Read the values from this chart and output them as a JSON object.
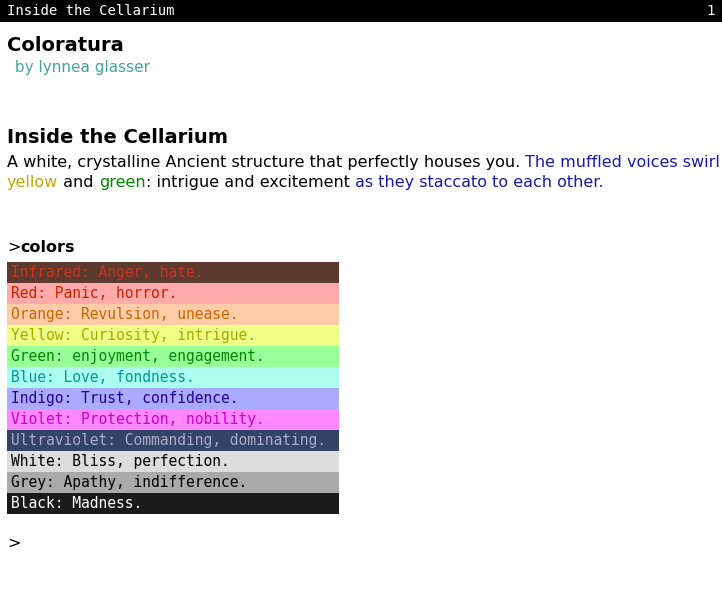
{
  "title_bar_text": "Inside the Cellarium",
  "title_bar_number": "1",
  "title_bar_bg": "#000000",
  "title_bar_fg": "#ffffff",
  "main_bg": "#ffffff",
  "game_title": "Coloratura",
  "game_author": " by lynnea glasser",
  "game_author_color": "#4aa0a0",
  "section_title": "Inside the Cellarium",
  "paragraph_color1": "#000000",
  "paragraph_color_yellow": "#bbaa00",
  "paragraph_color_green": "#008800",
  "paragraph_color_blue": "#1a1aaa",
  "command_prompt": ">",
  "command_word": "colors",
  "color_rows": [
    {
      "label": "Infrared: Anger, hate.",
      "bg": "#5c3a2e",
      "text_color": "#cc3322"
    },
    {
      "label": "Red: Panic, horror.",
      "bg": "#ffaaaa",
      "text_color": "#cc2200"
    },
    {
      "label": "Orange: Revulsion, unease.",
      "bg": "#ffccaa",
      "text_color": "#cc6600"
    },
    {
      "label": "Yellow: Curiosity, intrigue.",
      "bg": "#eeff88",
      "text_color": "#aaaa00"
    },
    {
      "label": "Green: enjoyment, engagement.",
      "bg": "#99ff99",
      "text_color": "#008800"
    },
    {
      "label": "Blue: Love, fondness.",
      "bg": "#aaffee",
      "text_color": "#009999"
    },
    {
      "label": "Indigo: Trust, confidence.",
      "bg": "#aaaaff",
      "text_color": "#220099"
    },
    {
      "label": "Violet: Protection, nobility.",
      "bg": "#ff88ff",
      "text_color": "#cc00cc"
    },
    {
      "label": "Ultraviolet: Commanding, dominating.",
      "bg": "#334466",
      "text_color": "#aaaacc"
    },
    {
      "label": "White: Bliss, perfection.",
      "bg": "#dddddd",
      "text_color": "#000000"
    },
    {
      "label": "Grey: Apathy, indifference.",
      "bg": "#aaaaaa",
      "text_color": "#000000"
    },
    {
      "label": "Black: Madness.",
      "bg": "#1a1a1a",
      "text_color": "#ffffff"
    }
  ],
  "figw": 7.22,
  "figh": 5.97,
  "dpi": 100
}
